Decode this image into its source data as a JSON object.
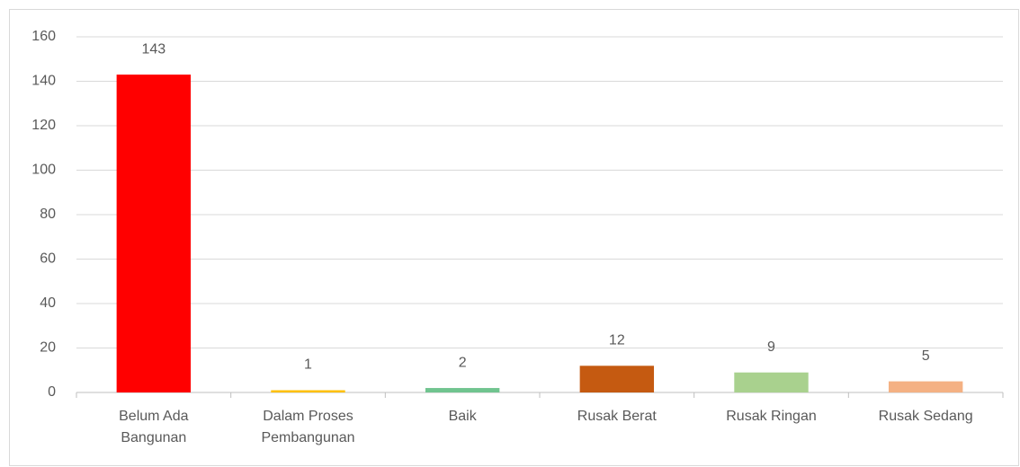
{
  "chart_data": {
    "type": "bar",
    "categories": [
      "Belum Ada Bangunan",
      "Dalam Proses Pembangunan",
      "Baik",
      "Rusak Berat",
      "Rusak Ringan",
      "Rusak Sedang"
    ],
    "values": [
      143,
      1,
      2,
      12,
      9,
      5
    ],
    "colors": [
      "#ff0000",
      "#ffc000",
      "#70c48f",
      "#c55a11",
      "#a9d18e",
      "#f4b183"
    ],
    "ylim": [
      0,
      160
    ],
    "yticks": [
      0,
      20,
      40,
      60,
      80,
      100,
      120,
      140,
      160
    ],
    "grid": true
  }
}
